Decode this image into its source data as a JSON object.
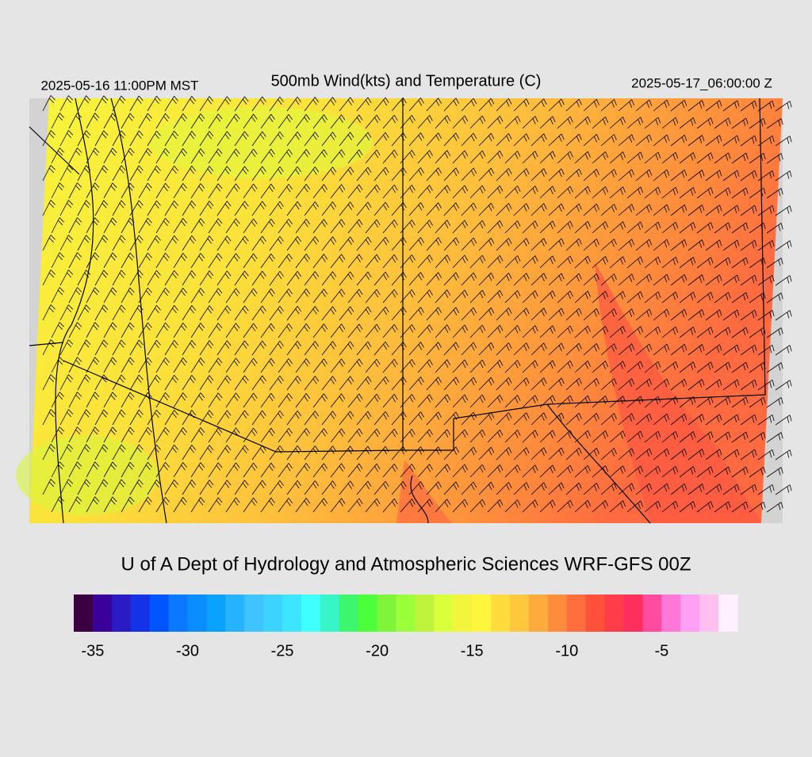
{
  "header": {
    "title": "500mb Wind(kts) and Temperature (C)",
    "valid_local": "2025-05-16 11:00PM MST",
    "valid_utc": "2025-05-17_06:00:00 Z"
  },
  "footer": {
    "credit": "U of A Dept of Hydrology and Atmospheric Sciences WRF-GFS 00Z"
  },
  "colorbar": {
    "range": [
      -36,
      -1
    ],
    "ticks": [
      -35,
      -30,
      -25,
      -20,
      -15,
      -10,
      -5
    ],
    "colors": [
      "#3b003f",
      "#3b0099",
      "#2a1bc4",
      "#1433e6",
      "#0055ff",
      "#0a78ff",
      "#0a8eff",
      "#0aa2ff",
      "#26b2ff",
      "#40c4ff",
      "#3cd4ff",
      "#3ce6ff",
      "#40ffff",
      "#38f5c8",
      "#3ef56e",
      "#4cff3a",
      "#7ef53a",
      "#9cff3c",
      "#bef53c",
      "#dcff3c",
      "#f2f53c",
      "#fff53c",
      "#ffdc3c",
      "#ffc83c",
      "#ffaa3c",
      "#ff8c3c",
      "#ff6e3c",
      "#ff503c",
      "#ff3c4a",
      "#ff2e5a",
      "#ff4ca0",
      "#ff78d8",
      "#ffa0f5",
      "#ffc0f0",
      "#fff0ff"
    ]
  }
}
